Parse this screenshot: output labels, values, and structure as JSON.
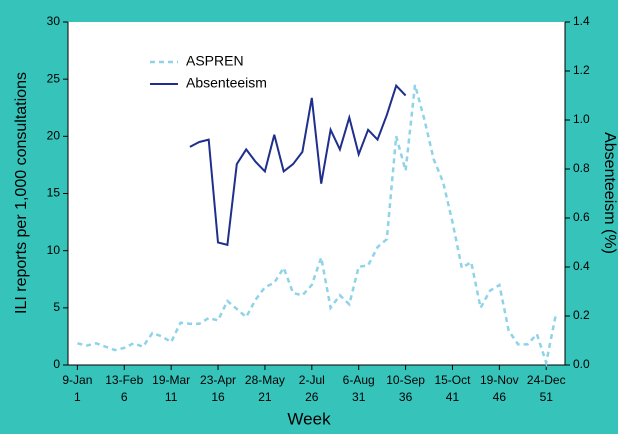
{
  "chart_data": {
    "type": "line",
    "xlabel": "Week",
    "ylabel": "ILI reports per 1,000 consultations",
    "y2label": "Absenteeism (%)",
    "x": [
      1,
      2,
      3,
      4,
      5,
      6,
      7,
      8,
      9,
      10,
      11,
      12,
      13,
      14,
      15,
      16,
      17,
      18,
      19,
      20,
      21,
      22,
      23,
      24,
      25,
      26,
      27,
      28,
      29,
      30,
      31,
      32,
      33,
      34,
      35,
      36,
      37,
      38,
      39,
      40,
      41,
      42,
      43,
      44,
      45,
      46,
      47,
      48,
      49,
      50,
      51,
      52
    ],
    "xlim": [
      0,
      53
    ],
    "xticks": [
      1,
      6,
      11,
      16,
      21,
      26,
      31,
      36,
      41,
      46,
      51
    ],
    "xtick_dates": [
      "9-Jan",
      "13-Feb",
      "19-Mar",
      "23-Apr",
      "28-May",
      "2-Jul",
      "6-Aug",
      "10-Sep",
      "15-Oct",
      "19-Nov",
      "24-Dec"
    ],
    "ylim": [
      0,
      30
    ],
    "yticks": [
      0,
      5,
      10,
      15,
      20,
      25,
      30
    ],
    "y2lim": [
      0,
      1.4
    ],
    "y2ticks": [
      {
        "value": 0,
        "label": "0.0"
      },
      0.2,
      0.4,
      0.6,
      0.8,
      {
        "value": 1,
        "label": "1.0"
      },
      1.2,
      1.4
    ],
    "legend": "upper-left",
    "series": [
      {
        "name": "ASPREN",
        "color": "#8fd3e8",
        "dashed": true,
        "values": [
          1.9,
          1.7,
          1.9,
          1.6,
          1.3,
          1.5,
          1.9,
          1.6,
          2.8,
          2.5,
          2.0,
          3.7,
          3.6,
          3.6,
          4.1,
          3.9,
          5.6,
          4.9,
          4.2,
          5.7,
          6.8,
          7.2,
          8.5,
          6.3,
          6.1,
          7.0,
          9.4,
          5.0,
          6.1,
          5.3,
          8.6,
          8.7,
          10.3,
          11.0,
          20.0,
          17.0,
          24.5,
          21.5,
          18.0,
          16.0,
          12.5,
          8.5,
          9.0,
          5.0,
          6.5,
          7.0,
          3.0,
          1.8,
          1.8,
          2.7,
          0.2,
          4.3
        ]
      },
      {
        "name": "Absenteeism",
        "color": "#1f2f8c",
        "dashed": false,
        "axis": "y2",
        "values": [
          null,
          null,
          null,
          null,
          null,
          null,
          null,
          null,
          null,
          null,
          null,
          null,
          0.89,
          0.91,
          0.92,
          0.5,
          0.49,
          0.82,
          0.88,
          0.83,
          0.79,
          0.94,
          0.79,
          0.82,
          0.87,
          1.09,
          0.74,
          0.96,
          0.88,
          1.01,
          0.86,
          0.96,
          0.92,
          1.02,
          1.14,
          1.1,
          null,
          null,
          null,
          null,
          null,
          null,
          null,
          null,
          null,
          null,
          null,
          null,
          null,
          null,
          null,
          null
        ]
      }
    ]
  }
}
